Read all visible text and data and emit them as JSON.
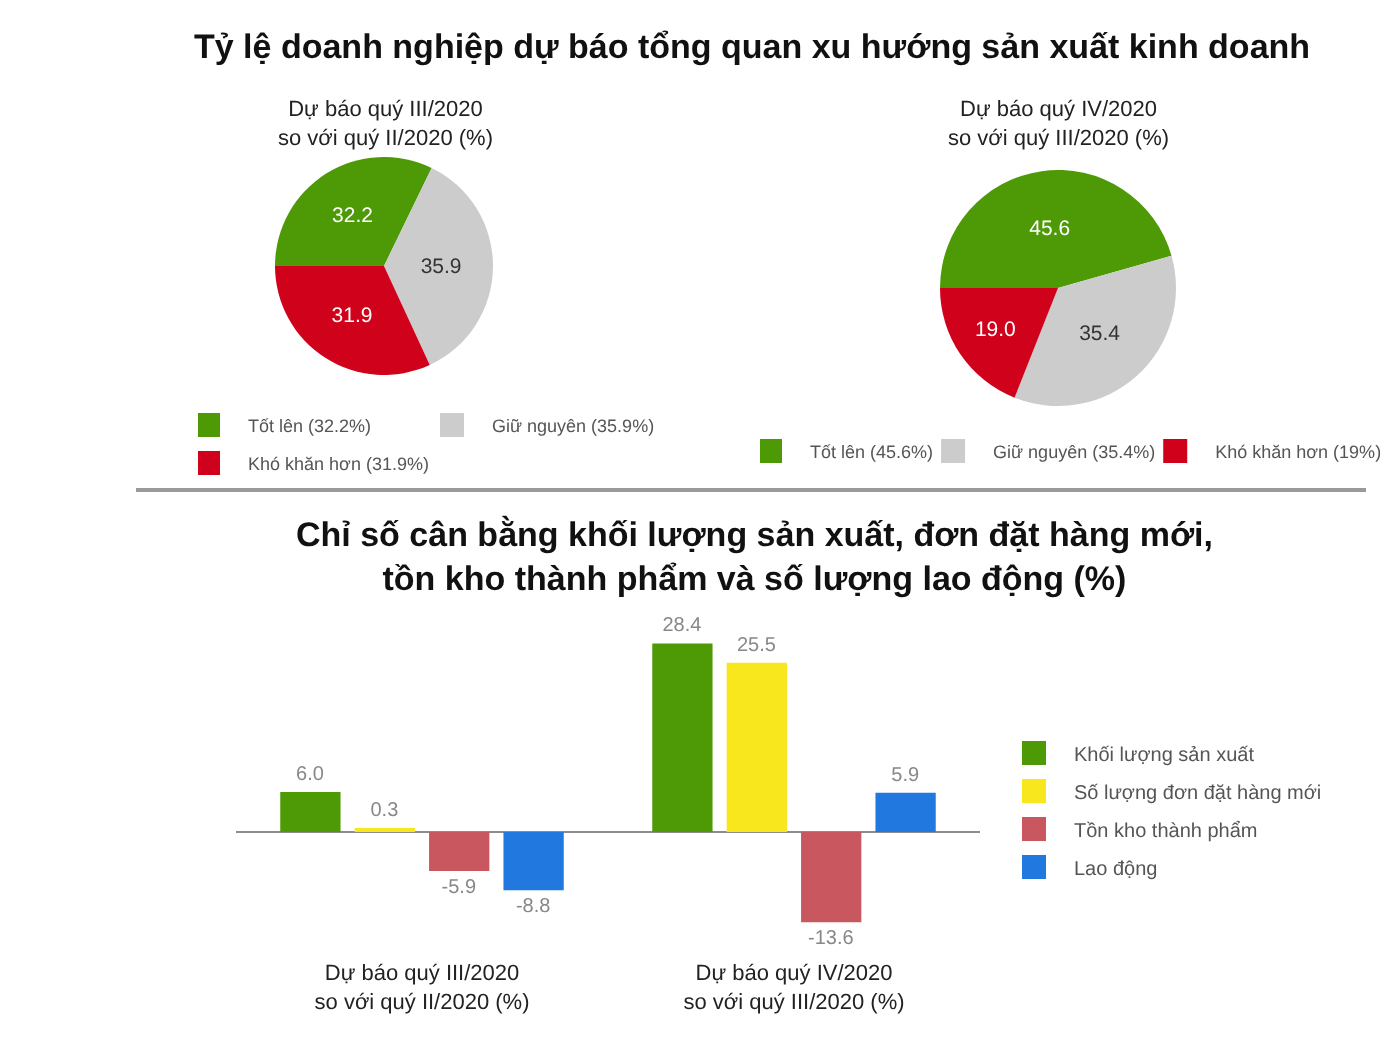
{
  "chart_data": [
    {
      "type": "pie",
      "title": "Tỷ lệ doanh nghiệp dự báo tổng quan xu hướng sản xuất kinh doanh",
      "subtitle": "Dự báo quý III/2020\nso với quý II/2020 (%)",
      "categories": [
        "Tốt lên (32.2%)",
        "Giữ nguyên (35.9%)",
        "Khó khăn hơn (31.9%)"
      ],
      "values": [
        32.2,
        35.9,
        31.9
      ],
      "colors": [
        "#4e9a06",
        "#cccccc",
        "#d0021b"
      ],
      "value_labels": [
        "32.2",
        "35.9",
        "31.9"
      ],
      "legend": "bottom"
    },
    {
      "type": "pie",
      "subtitle": "Dự báo quý IV/2020\nso với quý III/2020 (%)",
      "categories": [
        "Tốt lên (45.6%)",
        "Giữ nguyên (35.4%)",
        "Khó khăn hơn (19%)"
      ],
      "values": [
        45.6,
        35.4,
        19.0
      ],
      "colors": [
        "#4e9a06",
        "#cccccc",
        "#d0021b"
      ],
      "value_labels": [
        "45.6",
        "35.4",
        "19.0"
      ],
      "legend": "bottom"
    },
    {
      "type": "bar",
      "title": "Chỉ số cân bằng khối lượng sản xuất, đơn đặt hàng mới,\ntồn kho thành phẩm và số lượng lao động (%)",
      "categories": [
        "Dự báo quý III/2020\nso với quý II/2020 (%)",
        "Dự báo quý IV/2020\nso với quý III/2020 (%)"
      ],
      "series": [
        {
          "name": "Khối lượng sản xuất",
          "color": "#4e9a06",
          "values": [
            6.0,
            28.4
          ],
          "value_labels": [
            "6.0",
            "28.4"
          ]
        },
        {
          "name": "Số lượng đơn đặt hàng mới",
          "color": "#f8e71c",
          "values": [
            0.3,
            25.5
          ],
          "value_labels": [
            "0.3",
            "25.5"
          ]
        },
        {
          "name": "Tồn kho thành phẩm",
          "color": "#c9575f",
          "values": [
            -5.9,
            -13.6
          ],
          "value_labels": [
            "-5.9",
            "-13.6"
          ]
        },
        {
          "name": "Lao động",
          "color": "#2178de",
          "values": [
            -8.8,
            5.9
          ],
          "value_labels": [
            "-8.8",
            "5.9"
          ]
        }
      ],
      "grid": false,
      "legend": "right"
    }
  ]
}
